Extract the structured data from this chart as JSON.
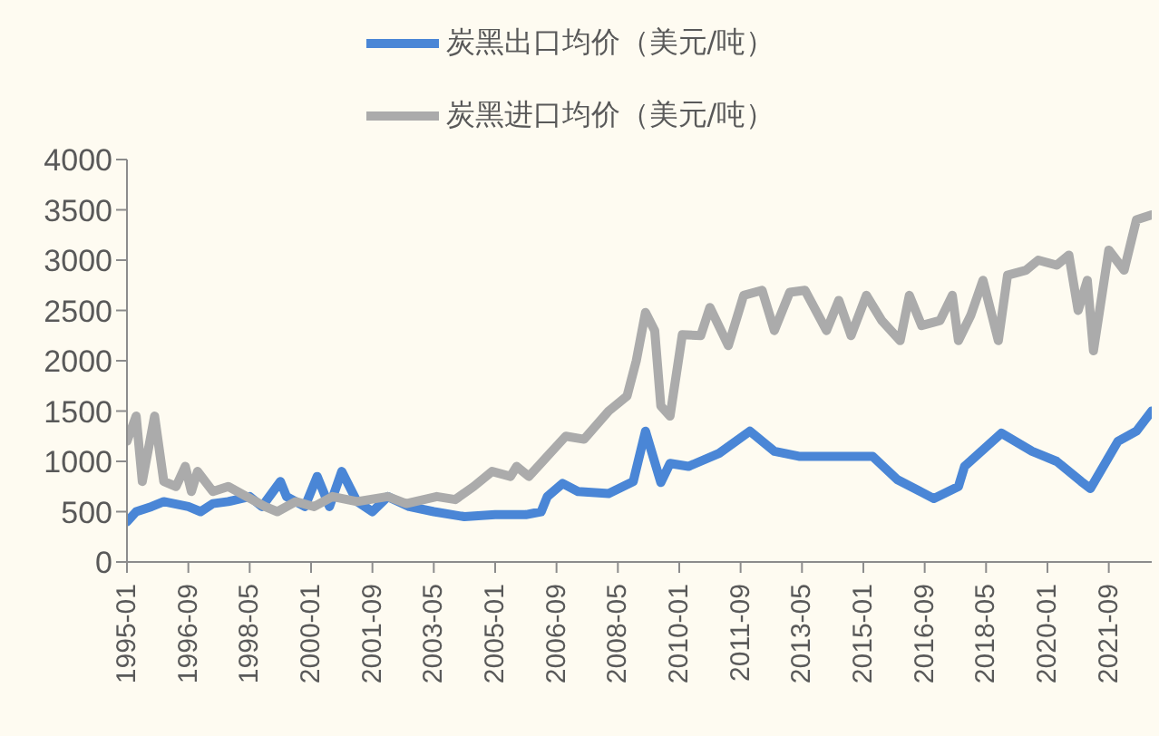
{
  "chart_data": {
    "type": "line",
    "xlim": [
      "1995-01",
      "2022-11"
    ],
    "xticks": [
      "1995-01",
      "1996-09",
      "1998-05",
      "2000-01",
      "2001-09",
      "2003-05",
      "2005-01",
      "2006-09",
      "2008-05",
      "2010-01",
      "2011-09",
      "2013-05",
      "2015-01",
      "2016-09",
      "2018-05",
      "2020-01",
      "2021-09"
    ],
    "ylim": [
      0,
      4000
    ],
    "yticks": [
      0,
      500,
      1000,
      1500,
      2000,
      2500,
      3000,
      3500,
      4000
    ],
    "grid": false,
    "legend": "top",
    "marker": "none",
    "line_style": "solid",
    "series": [
      {
        "name": "炭黑出口均价（美元/吨）",
        "color": "#4a86d6",
        "x": [
          "1995-01",
          "1995-04",
          "1995-09",
          "1996-01",
          "1996-09",
          "1997-01",
          "1997-05",
          "1997-10",
          "1998-05",
          "1998-09",
          "1999-03",
          "1999-05",
          "1999-11",
          "2000-03",
          "2000-07",
          "2000-11",
          "2001-04",
          "2001-09",
          "2002-02",
          "2002-09",
          "2003-05",
          "2004-03",
          "2005-01",
          "2005-11",
          "2006-04",
          "2006-06",
          "2006-11",
          "2007-04",
          "2008-02",
          "2008-10",
          "2009-02",
          "2009-07",
          "2009-10",
          "2010-04",
          "2011-02",
          "2011-12",
          "2012-08",
          "2013-04",
          "2015-04",
          "2015-12",
          "2016-12",
          "2017-08",
          "2017-10",
          "2018-10",
          "2019-08",
          "2020-04",
          "2020-12",
          "2021-03",
          "2021-12",
          "2022-06",
          "2022-11"
        ],
        "values": [
          400,
          500,
          550,
          600,
          550,
          500,
          580,
          600,
          650,
          550,
          800,
          650,
          550,
          850,
          550,
          900,
          600,
          500,
          650,
          550,
          500,
          450,
          470,
          470,
          500,
          650,
          780,
          700,
          680,
          800,
          1300,
          790,
          980,
          950,
          1080,
          1300,
          1100,
          1050,
          1050,
          820,
          630,
          750,
          950,
          1280,
          1100,
          1000,
          800,
          730,
          1200,
          1300,
          1500
        ]
      },
      {
        "name": "炭黑进口均价（美元/吨）",
        "color": "#ababab",
        "x": [
          "1995-01",
          "1995-04",
          "1995-06",
          "1995-10",
          "1996-01",
          "1996-05",
          "1996-08",
          "1996-10",
          "1996-12",
          "1997-05",
          "1997-10",
          "1998-04",
          "1998-10",
          "1999-02",
          "1999-08",
          "2000-02",
          "2000-08",
          "2001-04",
          "2002-02",
          "2002-08",
          "2003-06",
          "2003-12",
          "2004-06",
          "2004-12",
          "2005-06",
          "2005-08",
          "2005-12",
          "2006-06",
          "2006-12",
          "2007-06",
          "2008-02",
          "2008-08",
          "2008-11",
          "2009-02",
          "2009-05",
          "2009-07",
          "2009-10",
          "2010-02",
          "2010-08",
          "2010-11",
          "2011-05",
          "2011-10",
          "2012-04",
          "2012-08",
          "2013-01",
          "2013-06",
          "2014-01",
          "2014-05",
          "2014-09",
          "2015-02",
          "2015-07",
          "2016-01",
          "2016-04",
          "2016-08",
          "2017-02",
          "2017-06",
          "2017-08",
          "2017-12",
          "2018-04",
          "2018-09",
          "2018-12",
          "2019-06",
          "2019-10",
          "2020-04",
          "2020-08",
          "2020-11",
          "2021-02",
          "2021-04",
          "2021-09",
          "2022-02",
          "2022-06",
          "2022-11"
        ],
        "values": [
          1200,
          1450,
          800,
          1450,
          800,
          750,
          950,
          700,
          900,
          700,
          750,
          650,
          550,
          500,
          600,
          550,
          650,
          600,
          650,
          580,
          650,
          620,
          750,
          900,
          850,
          950,
          850,
          1050,
          1250,
          1220,
          1500,
          1650,
          2000,
          2480,
          2300,
          1550,
          1450,
          2260,
          2250,
          2530,
          2150,
          2650,
          2700,
          2300,
          2680,
          2700,
          2300,
          2600,
          2250,
          2650,
          2400,
          2200,
          2650,
          2350,
          2400,
          2650,
          2200,
          2450,
          2800,
          2200,
          2850,
          2900,
          3000,
          2950,
          3050,
          2500,
          2800,
          2100,
          3100,
          2900,
          3400,
          3450
        ]
      }
    ]
  }
}
